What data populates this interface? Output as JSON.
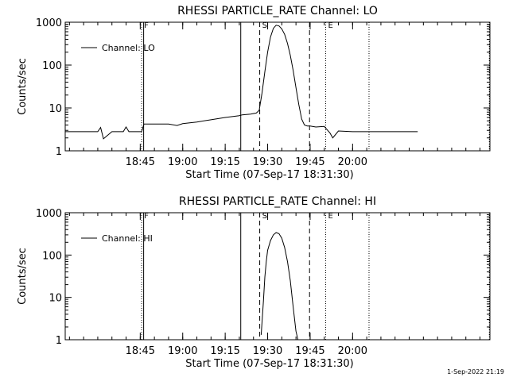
{
  "footer": {
    "stamp": "1-Sep-2022 21:19"
  },
  "chart_data": [
    {
      "type": "line",
      "title": "RHESSI PARTICLE_RATE Channel: LO",
      "xlabel": "Start Time (07-Sep-17 18:31:30)",
      "ylabel": "Counts/sec",
      "y_scale": "log",
      "ylim": [
        1,
        1000
      ],
      "x_unit": "minutes after 18:30 on 07-Sep-17",
      "xlim": [
        18.5,
        168.5
      ],
      "x_ticks": [
        {
          "x": 45,
          "label": "18:45"
        },
        {
          "x": 60,
          "label": "19:00"
        },
        {
          "x": 75,
          "label": "19:15"
        },
        {
          "x": 90,
          "label": "19:30"
        },
        {
          "x": 105,
          "label": "19:45"
        },
        {
          "x": 120,
          "label": "20:00"
        }
      ],
      "y_ticks": [
        {
          "y": 1,
          "label": "1"
        },
        {
          "y": 10,
          "label": "10"
        },
        {
          "y": 100,
          "label": "100"
        },
        {
          "y": 1000,
          "label": "1000"
        }
      ],
      "grid": false,
      "legend": {
        "position": "top-left",
        "entries": [
          "Channel: LO"
        ]
      },
      "markers": [
        {
          "x": 45.5,
          "style": "dotted",
          "label": "F"
        },
        {
          "x": 46.2,
          "style": "solid",
          "label": ""
        },
        {
          "x": 80.5,
          "style": "solid",
          "label": ""
        },
        {
          "x": 87.2,
          "style": "dashed",
          "label": "S"
        },
        {
          "x": 104.8,
          "style": "dashed",
          "label": ""
        },
        {
          "x": 110.5,
          "style": "dotted",
          "label": "E"
        },
        {
          "x": 125.8,
          "style": "dotted",
          "label": ""
        },
        {
          "x": 168.3,
          "style": "dotted",
          "label": ""
        }
      ],
      "series": [
        {
          "name": "Channel: LO",
          "x": [
            18.5,
            25,
            30,
            31,
            32,
            35,
            39,
            40,
            41,
            44,
            45.5,
            46.3,
            50,
            55,
            58,
            60,
            65,
            70,
            75,
            80,
            81,
            84,
            86,
            87,
            88,
            89,
            90,
            91,
            92,
            93,
            94,
            95,
            96,
            97,
            98,
            99,
            100,
            101,
            102,
            103,
            104,
            105,
            107,
            110,
            112,
            113,
            115,
            120,
            125,
            130,
            135,
            140,
            143
          ],
          "y": [
            2.8,
            2.8,
            2.8,
            3.5,
            1.9,
            2.8,
            2.8,
            3.6,
            2.8,
            2.8,
            2.8,
            4.2,
            4.2,
            4.2,
            3.9,
            4.3,
            4.7,
            5.3,
            6.0,
            6.6,
            6.9,
            7.2,
            7.6,
            8.8,
            22,
            70,
            200,
            450,
            720,
            850,
            820,
            700,
            520,
            320,
            170,
            75,
            30,
            12,
            5.5,
            4.0,
            3.8,
            3.8,
            3.6,
            3.7,
            2.6,
            2.0,
            2.9,
            2.8,
            2.8,
            2.8,
            2.8,
            2.8,
            2.8
          ]
        }
      ]
    },
    {
      "type": "line",
      "title": "RHESSI PARTICLE_RATE Channel: HI",
      "xlabel": "Start Time (07-Sep-17 18:31:30)",
      "ylabel": "Counts/sec",
      "y_scale": "log",
      "ylim": [
        1,
        1000
      ],
      "x_unit": "minutes after 18:30 on 07-Sep-17",
      "xlim": [
        18.5,
        168.5
      ],
      "x_ticks": [
        {
          "x": 45,
          "label": "18:45"
        },
        {
          "x": 60,
          "label": "19:00"
        },
        {
          "x": 75,
          "label": "19:15"
        },
        {
          "x": 90,
          "label": "19:30"
        },
        {
          "x": 105,
          "label": "19:45"
        },
        {
          "x": 120,
          "label": "20:00"
        }
      ],
      "y_ticks": [
        {
          "y": 1,
          "label": "1"
        },
        {
          "y": 10,
          "label": "10"
        },
        {
          "y": 100,
          "label": "100"
        },
        {
          "y": 1000,
          "label": "1000"
        }
      ],
      "grid": false,
      "legend": {
        "position": "top-left",
        "entries": [
          "Channel: HI"
        ]
      },
      "markers": [
        {
          "x": 45.5,
          "style": "dotted",
          "label": "F"
        },
        {
          "x": 46.2,
          "style": "solid",
          "label": ""
        },
        {
          "x": 80.5,
          "style": "solid",
          "label": ""
        },
        {
          "x": 87.2,
          "style": "dashed",
          "label": "S"
        },
        {
          "x": 104.8,
          "style": "dashed",
          "label": ""
        },
        {
          "x": 110.5,
          "style": "dotted",
          "label": "E"
        },
        {
          "x": 125.8,
          "style": "dotted",
          "label": ""
        },
        {
          "x": 168.3,
          "style": "dotted",
          "label": ""
        }
      ],
      "series": [
        {
          "name": "Channel: HI",
          "x": [
            87.7,
            88,
            88.5,
            89,
            89.5,
            90,
            91,
            92,
            93,
            94,
            95,
            96,
            97,
            98,
            99,
            100,
            100.7
          ],
          "y": [
            1.3,
            2.5,
            8,
            30,
            70,
            130,
            220,
            300,
            340,
            320,
            250,
            150,
            70,
            25,
            6,
            1.6,
            1.0
          ]
        }
      ]
    }
  ]
}
